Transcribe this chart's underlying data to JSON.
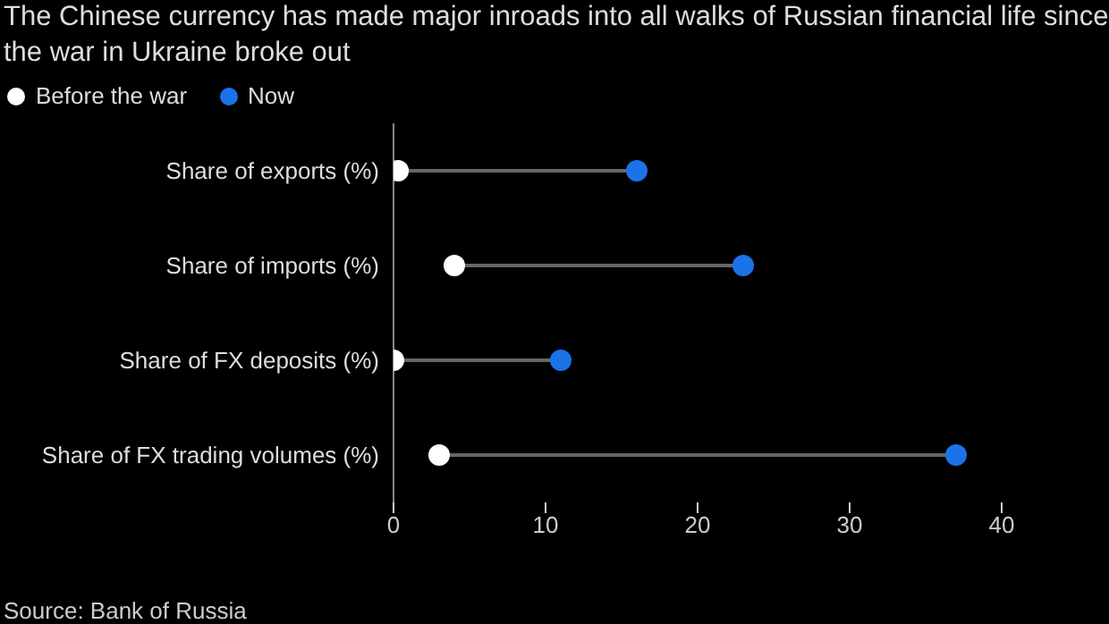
{
  "chart_data": {
    "type": "scatter",
    "orientation": "horizontal",
    "title": "The Chinese currency has made major inroads into all walks of Russian financial life since the war in Ukraine broke out",
    "categories": [
      "Share of exports (%)",
      "Share of imports (%)",
      "Share of FX deposits (%)",
      "Share of FX trading volumes (%)"
    ],
    "series": [
      {
        "name": "Before the war",
        "color": "#ffffff",
        "values": [
          0.3,
          4,
          0,
          3
        ]
      },
      {
        "name": "Now",
        "color": "#1a73e8",
        "values": [
          16,
          23,
          11,
          37
        ]
      }
    ],
    "xlim": [
      0,
      40
    ],
    "xticks": [
      0,
      10,
      20,
      30,
      40
    ],
    "grid": false,
    "legend": "top left",
    "marker": "circle",
    "annotations": [
      "Source: Bank of Russia"
    ]
  }
}
